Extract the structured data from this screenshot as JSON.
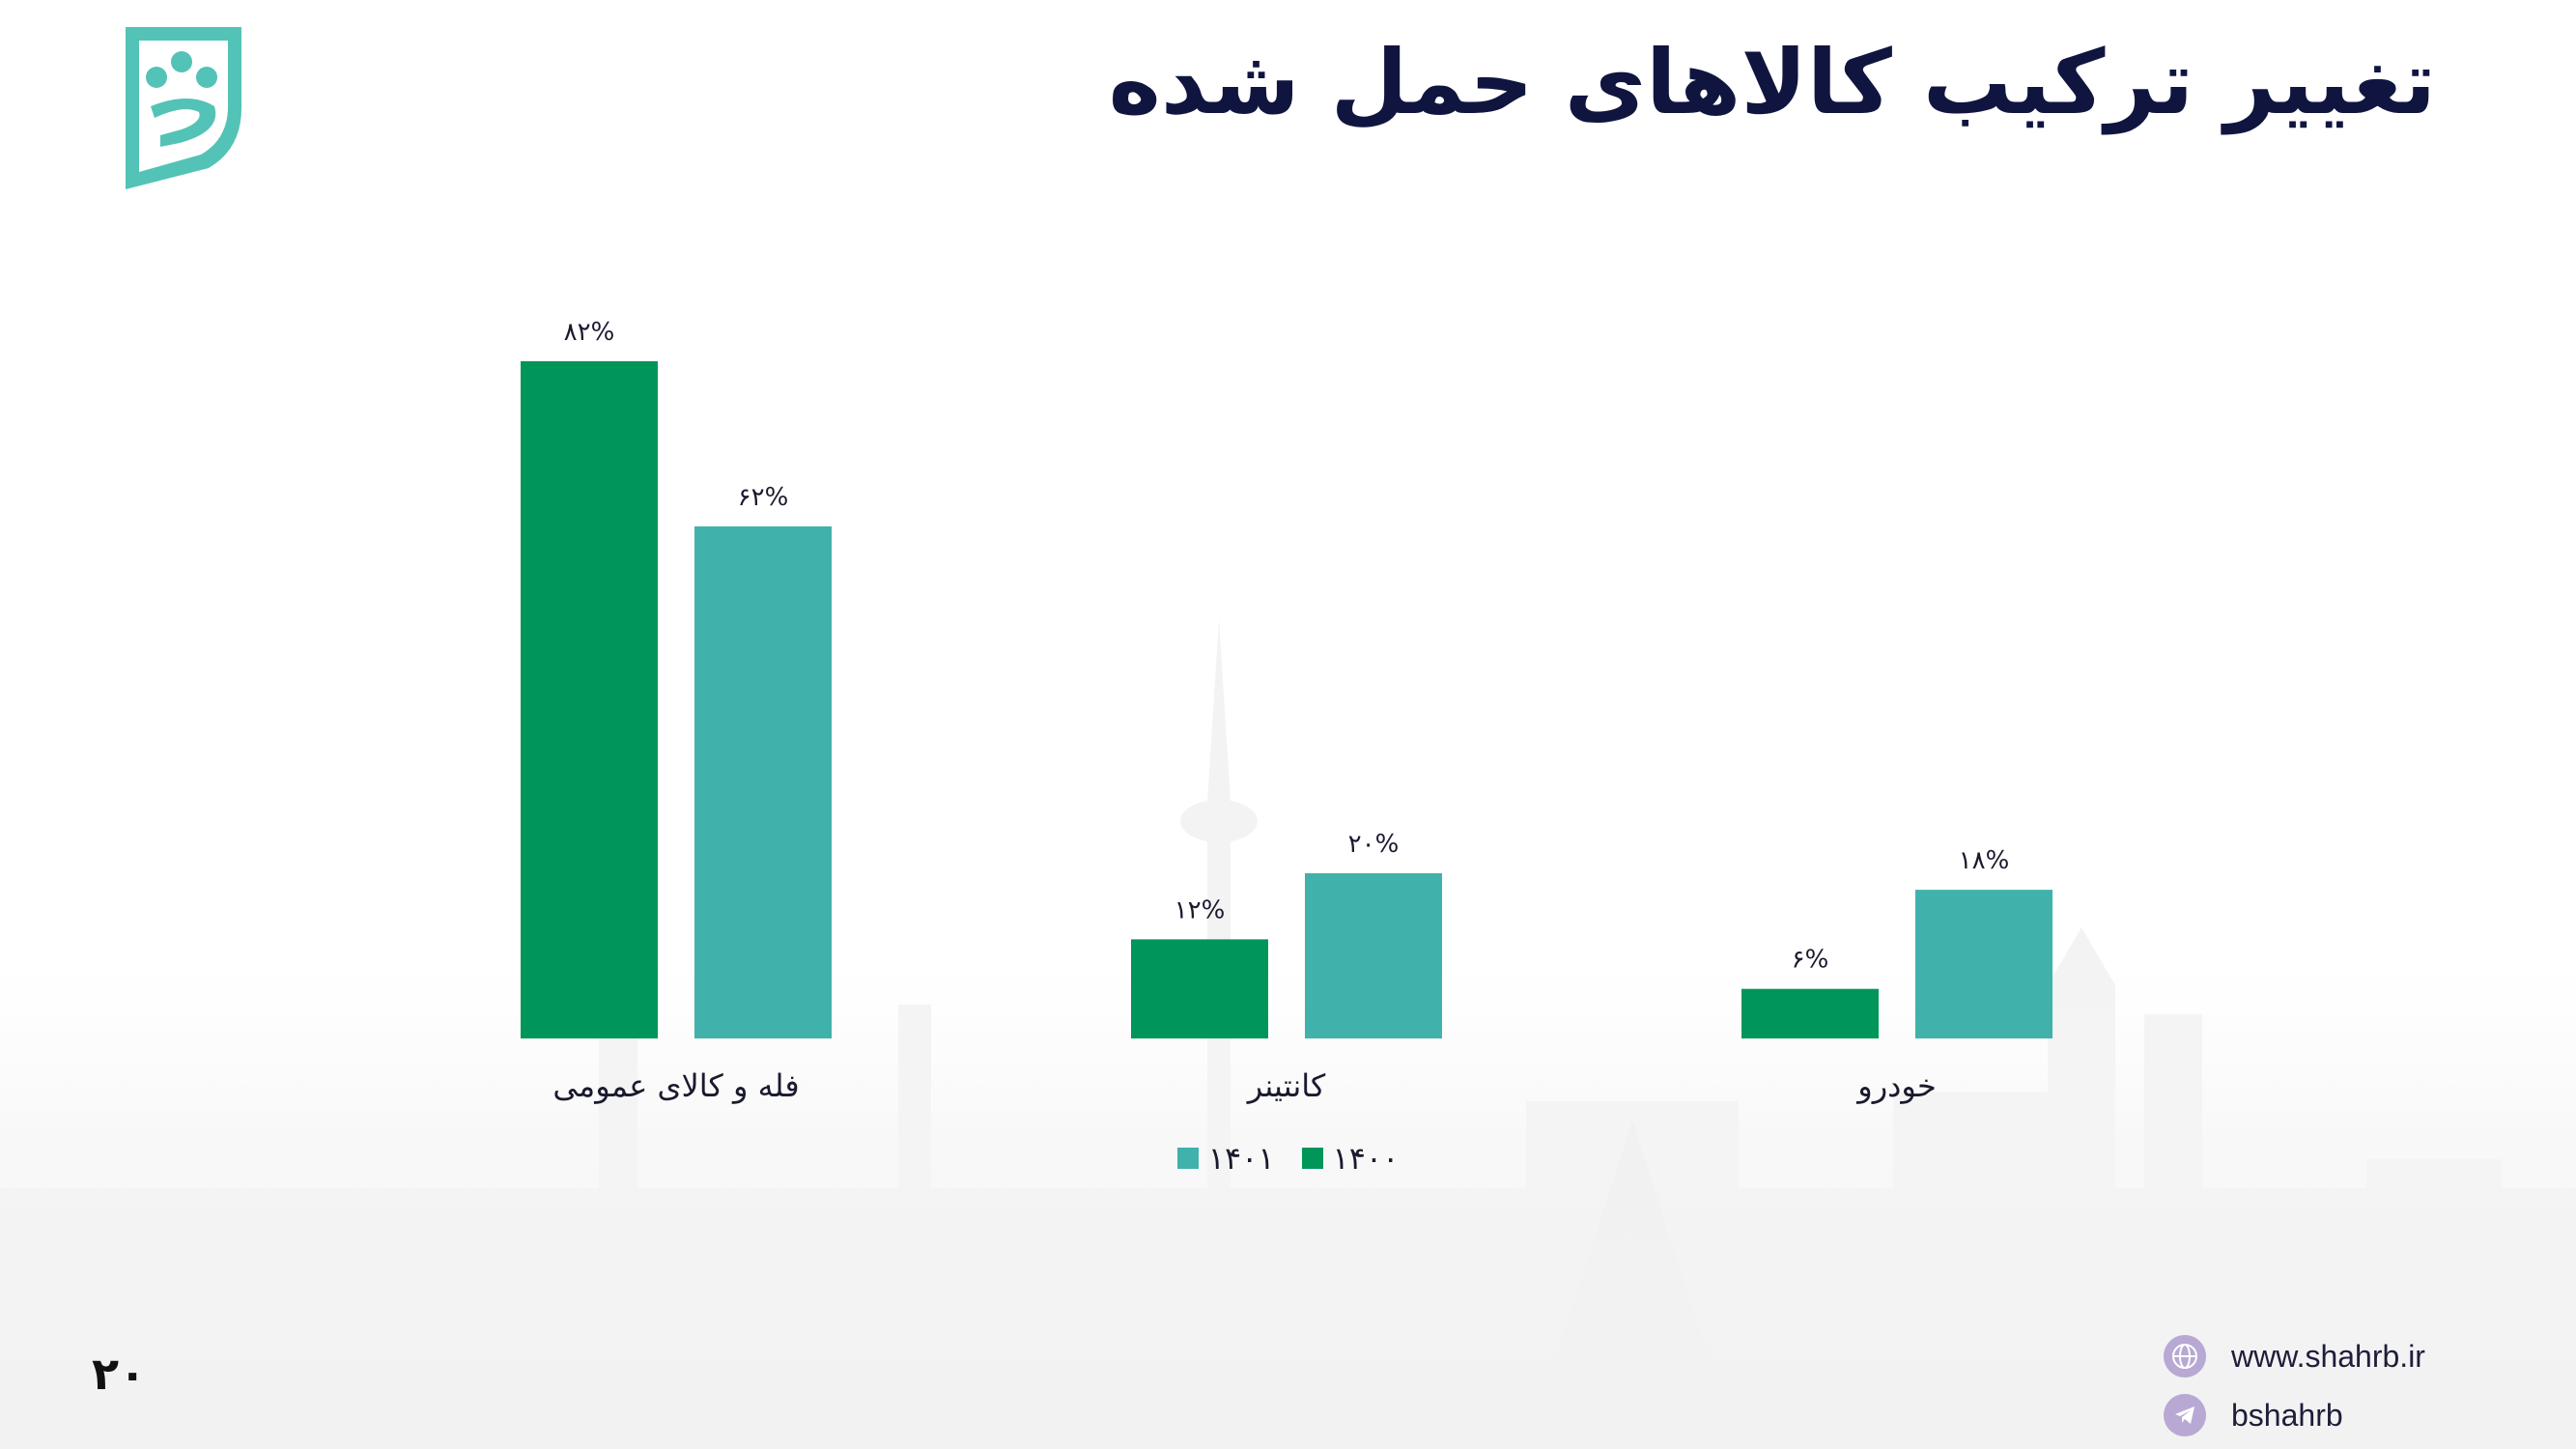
{
  "title": "تغییر ترکیب کالاهای حمل شده",
  "page_number": "۲۰",
  "footer": {
    "website": "www.shahrb.ir",
    "telegram": "bshahrb",
    "website_icon": "globe-icon",
    "telegram_icon": "telegram-icon"
  },
  "colors": {
    "series_1400": "#00965a",
    "series_1401": "#40b2ab",
    "title": "#101540",
    "logo": "#52c3b6"
  },
  "legend": [
    {
      "label": "۱۴۰۰",
      "color": "#00965a"
    },
    {
      "label": "۱۴۰۱",
      "color": "#40b2ab"
    }
  ],
  "chart_data": {
    "type": "bar",
    "title": "تغییر ترکیب کالاهای حمل شده",
    "categories": [
      "فله و کالای عمومی",
      "کانتینر",
      "خودرو"
    ],
    "series": [
      {
        "name": "۱۴۰۰",
        "values": [
          82,
          12,
          6
        ],
        "labels": [
          "۸۲%",
          "۱۲%",
          "۶%"
        ]
      },
      {
        "name": "۱۴۰۱",
        "values": [
          62,
          20,
          18
        ],
        "labels": [
          "۶۲%",
          "۲۰%",
          "۱۸%"
        ]
      }
    ],
    "ylim": [
      0,
      100
    ],
    "unit": "%",
    "grid": false,
    "legend_position": "bottom"
  }
}
